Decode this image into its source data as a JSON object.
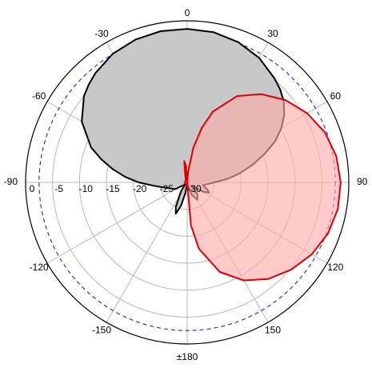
{
  "chart_data": {
    "type": "polar",
    "title": "",
    "angle_unit": "degrees",
    "angle_zero": "top",
    "angle_direction": "clockwise",
    "angle_tick_labels": [
      {
        "angle": 0,
        "label": "0"
      },
      {
        "angle": 30,
        "label": "30"
      },
      {
        "angle": 60,
        "label": "60"
      },
      {
        "angle": 90,
        "label": "90"
      },
      {
        "angle": 120,
        "label": "120"
      },
      {
        "angle": 150,
        "label": "150"
      },
      {
        "angle": 180,
        "label": "±180"
      },
      {
        "angle": -150,
        "label": "-150"
      },
      {
        "angle": -120,
        "label": "-120"
      },
      {
        "angle": -90,
        "label": "-90"
      },
      {
        "angle": -60,
        "label": "-60"
      },
      {
        "angle": -30,
        "label": "-30"
      }
    ],
    "radial_unit": "dB",
    "radial_range": [
      -30,
      0
    ],
    "radial_ticks": [
      0,
      -5,
      -10,
      -15,
      -20,
      -25,
      -30
    ],
    "radial_tick_labels": [
      "0",
      "-5",
      "-10",
      "-15",
      "-20",
      "-25",
      "-30"
    ],
    "reference_circle_db": -2.5,
    "grid": true,
    "series": [
      {
        "color": "#000000",
        "fill": "#c8c8c8",
        "points": [
          {
            "angle": 0,
            "db": -1.5
          },
          {
            "angle": 10,
            "db": -1.7
          },
          {
            "angle": 20,
            "db": -2.3
          },
          {
            "angle": 30,
            "db": -3.3
          },
          {
            "angle": 40,
            "db": -4.8
          },
          {
            "angle": 45,
            "db": -5.6
          },
          {
            "angle": 50,
            "db": -6.6
          },
          {
            "angle": 55,
            "db": -8.0
          },
          {
            "angle": 60,
            "db": -9.8
          },
          {
            "angle": 65,
            "db": -12.0
          },
          {
            "angle": 70,
            "db": -14.8
          },
          {
            "angle": 75,
            "db": -17.5
          },
          {
            "angle": 80,
            "db": -20.0
          },
          {
            "angle": 85,
            "db": -22.5
          },
          {
            "angle": 90,
            "db": -25.0
          },
          {
            "angle": 100,
            "db": -27.0
          },
          {
            "angle": 110,
            "db": -26.0
          },
          {
            "angle": 115,
            "db": -25.5
          },
          {
            "angle": 120,
            "db": -26.5
          },
          {
            "angle": 130,
            "db": -29.0
          },
          {
            "angle": 140,
            "db": -27.0
          },
          {
            "angle": 150,
            "db": -26.3
          },
          {
            "angle": 160,
            "db": -27.5
          },
          {
            "angle": 170,
            "db": -29.5
          },
          {
            "angle": 180,
            "db": -30.0
          },
          {
            "angle": -170,
            "db": -28.0
          },
          {
            "angle": -165,
            "db": -25.5
          },
          {
            "angle": -160,
            "db": -23.8
          },
          {
            "angle": -155,
            "db": -25.0
          },
          {
            "angle": -145,
            "db": -28.0
          },
          {
            "angle": -135,
            "db": -29.5
          },
          {
            "angle": -120,
            "db": -27.5
          },
          {
            "angle": -105,
            "db": -26.0
          },
          {
            "angle": -95,
            "db": -23.5
          },
          {
            "angle": -90,
            "db": -21.0
          },
          {
            "angle": -85,
            "db": -18.5
          },
          {
            "angle": -80,
            "db": -16.0
          },
          {
            "angle": -75,
            "db": -13.5
          },
          {
            "angle": -70,
            "db": -11.0
          },
          {
            "angle": -60,
            "db": -7.4
          },
          {
            "angle": -50,
            "db": -5.0
          },
          {
            "angle": -45,
            "db": -4.2
          },
          {
            "angle": -40,
            "db": -3.5
          },
          {
            "angle": -30,
            "db": -2.4
          },
          {
            "angle": -20,
            "db": -1.8
          },
          {
            "angle": -10,
            "db": -1.5
          }
        ]
      },
      {
        "color": "#e00000",
        "fill": "#ffaaaa",
        "points": [
          {
            "angle": 0,
            "db": -30.0
          },
          {
            "angle": 5,
            "db": -28.0
          },
          {
            "angle": 10,
            "db": -23.5
          },
          {
            "angle": 15,
            "db": -19.5
          },
          {
            "angle": 20,
            "db": -16.0
          },
          {
            "angle": 30,
            "db": -11.5
          },
          {
            "angle": 40,
            "db": -8.6
          },
          {
            "angle": 50,
            "db": -6.2
          },
          {
            "angle": 60,
            "db": -4.3
          },
          {
            "angle": 70,
            "db": -2.8
          },
          {
            "angle": 80,
            "db": -1.9
          },
          {
            "angle": 90,
            "db": -1.5
          },
          {
            "angle": 100,
            "db": -1.6
          },
          {
            "angle": 110,
            "db": -2.2
          },
          {
            "angle": 120,
            "db": -3.3
          },
          {
            "angle": 130,
            "db": -4.8
          },
          {
            "angle": 140,
            "db": -6.6
          },
          {
            "angle": 150,
            "db": -9.0
          },
          {
            "angle": 160,
            "db": -12.3
          },
          {
            "angle": 170,
            "db": -17.5
          },
          {
            "angle": 175,
            "db": -22.0
          },
          {
            "angle": 180,
            "db": -30.0
          },
          {
            "angle": -170,
            "db": -29.2
          },
          {
            "angle": -150,
            "db": -29.5
          },
          {
            "angle": -120,
            "db": -29.6
          },
          {
            "angle": -90,
            "db": -29.5
          },
          {
            "angle": -60,
            "db": -29.6
          },
          {
            "angle": -30,
            "db": -29.5
          },
          {
            "angle": -15,
            "db": -28.5
          },
          {
            "angle": -8,
            "db": -26.0
          },
          {
            "angle": -4,
            "db": -27.0
          }
        ]
      }
    ]
  }
}
